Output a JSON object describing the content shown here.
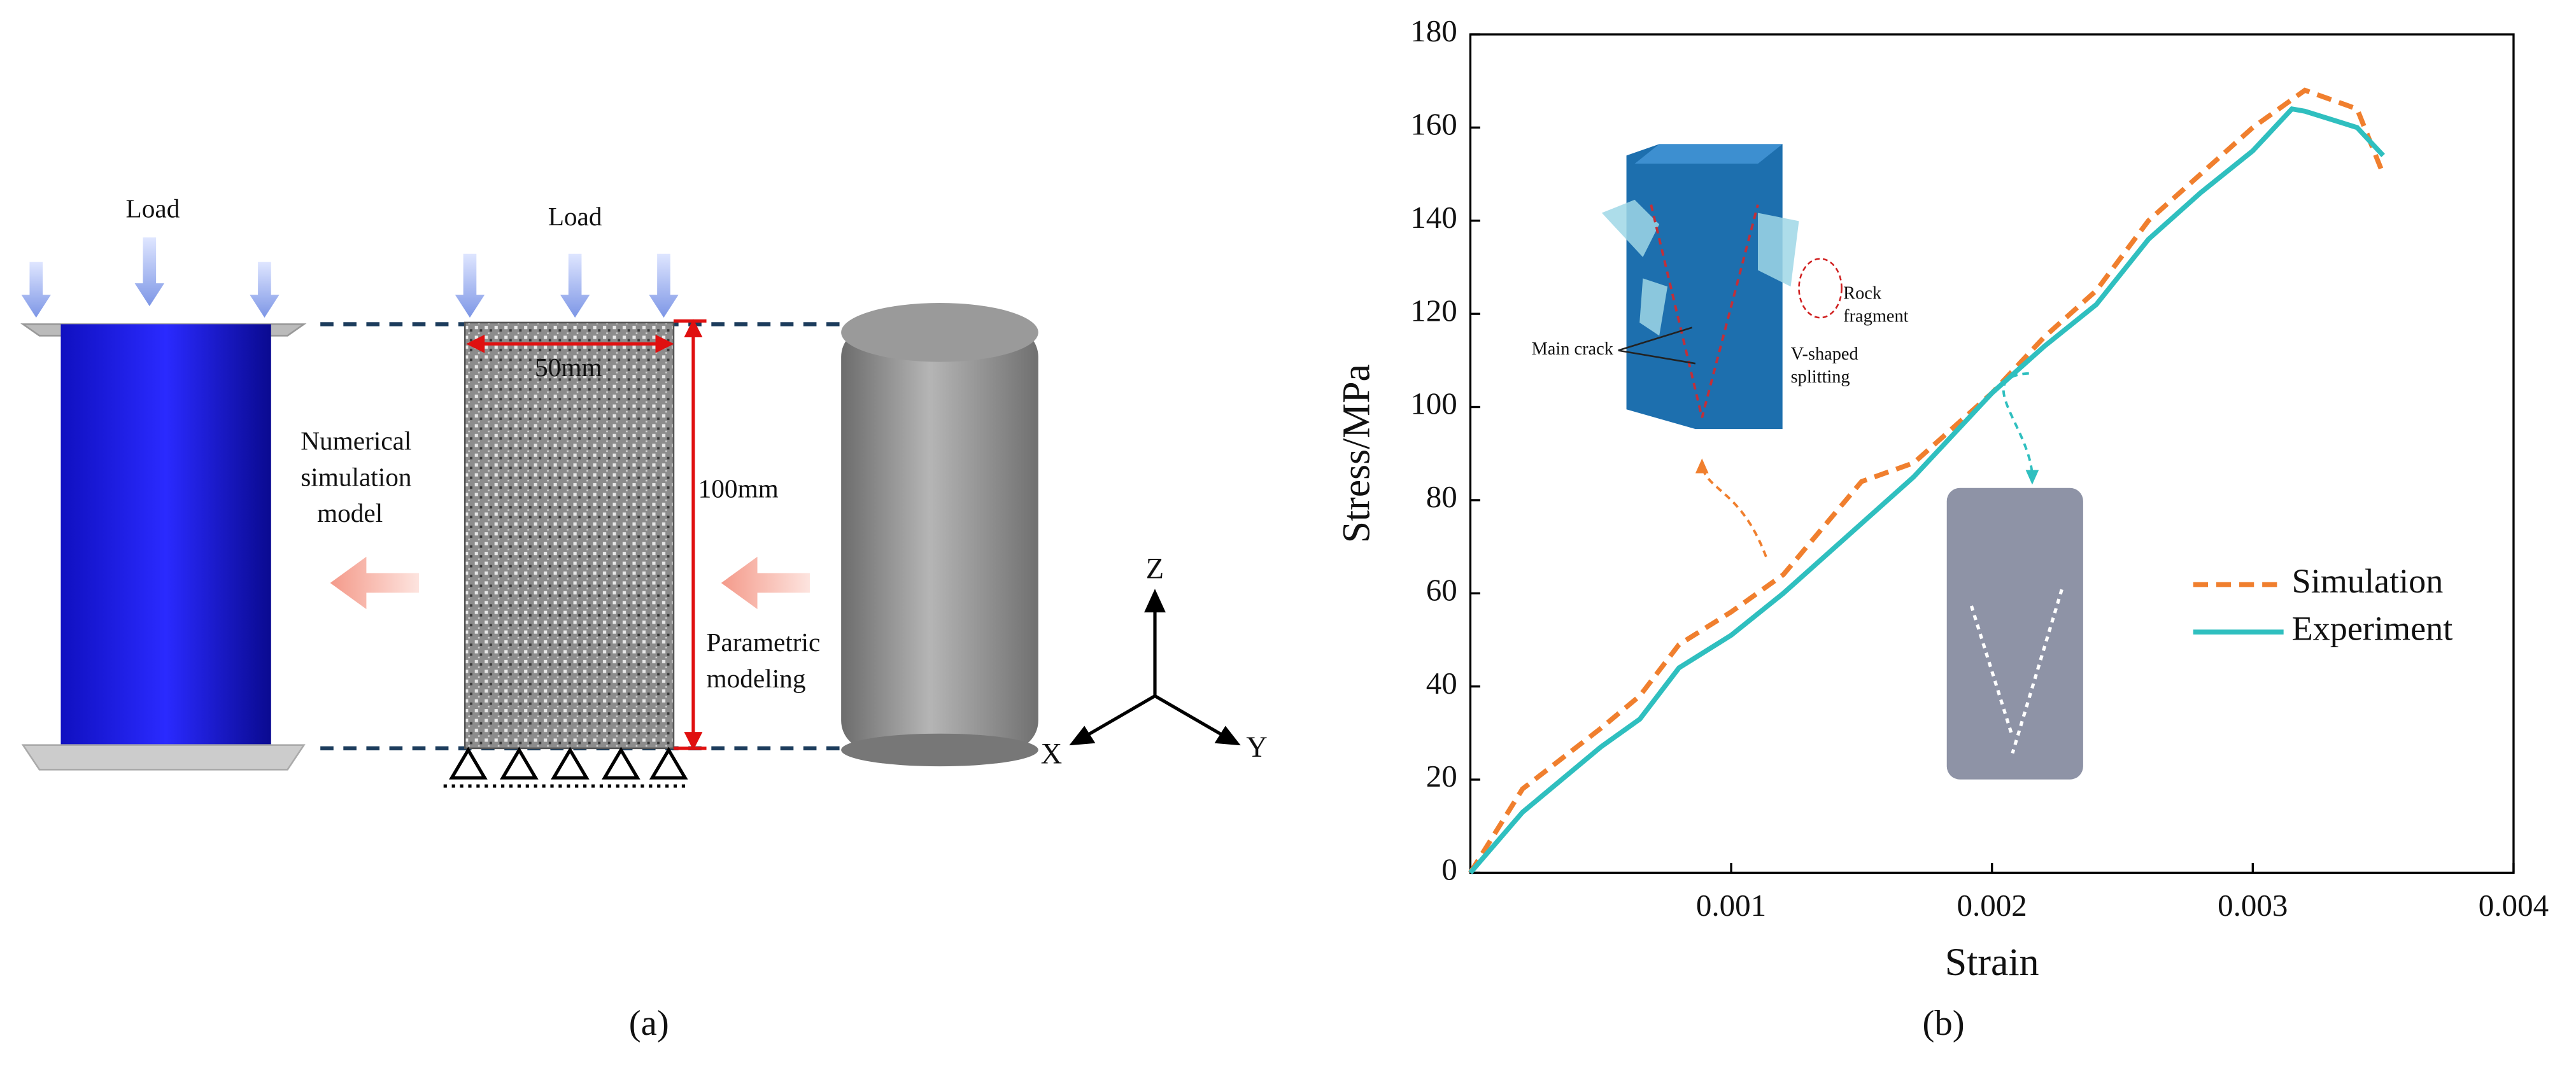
{
  "panel_a": {
    "label": "(a)",
    "load_left": "Load",
    "load_middle": "Load",
    "width_dim": "50mm",
    "height_dim": "100mm",
    "numerical_label": [
      "Numerical",
      "simulation",
      "model"
    ],
    "parametric_label": [
      "Parametric",
      "modeling"
    ],
    "axis_z": "Z",
    "axis_x": "X",
    "axis_y": "Y"
  },
  "chart_data": {
    "type": "line",
    "label": "(b)",
    "x_label": "Strain",
    "y_label": "Stress/MPa",
    "x": [
      0,
      0.0002,
      0.0005,
      0.00065,
      0.0008,
      0.001,
      0.0012,
      0.0015,
      0.0017,
      0.002,
      0.0022,
      0.0024,
      0.0026,
      0.0028,
      0.003,
      0.00315,
      0.0032,
      0.0034,
      0.0035
    ],
    "series": [
      {
        "name": "Simulation",
        "color": "#f07f2e",
        "dash": true,
        "values": [
          0,
          18,
          31,
          38,
          49,
          56,
          64,
          84,
          88,
          103,
          115,
          125,
          140,
          150,
          160,
          166,
          168,
          164,
          150
        ]
      },
      {
        "name": "Experiment",
        "color": "#2fbfbf",
        "dash": false,
        "values": [
          0,
          13,
          27,
          33,
          44,
          51,
          60,
          75,
          85,
          103,
          113,
          122,
          136,
          146,
          155,
          164,
          163.5,
          160,
          154
        ]
      }
    ],
    "xlim": [
      0,
      0.004
    ],
    "ylim": [
      0,
      180
    ],
    "xticks": [
      0.001,
      0.002,
      0.003,
      0.004
    ],
    "yticks": [
      0,
      20,
      40,
      60,
      80,
      100,
      120,
      140,
      160,
      180
    ],
    "legend": "center right",
    "annotations": {
      "rock_fragment": [
        "Rock",
        "fragment"
      ],
      "main_crack": "Main crack",
      "v_splitting": [
        "V-shaped",
        "splitting"
      ]
    }
  }
}
